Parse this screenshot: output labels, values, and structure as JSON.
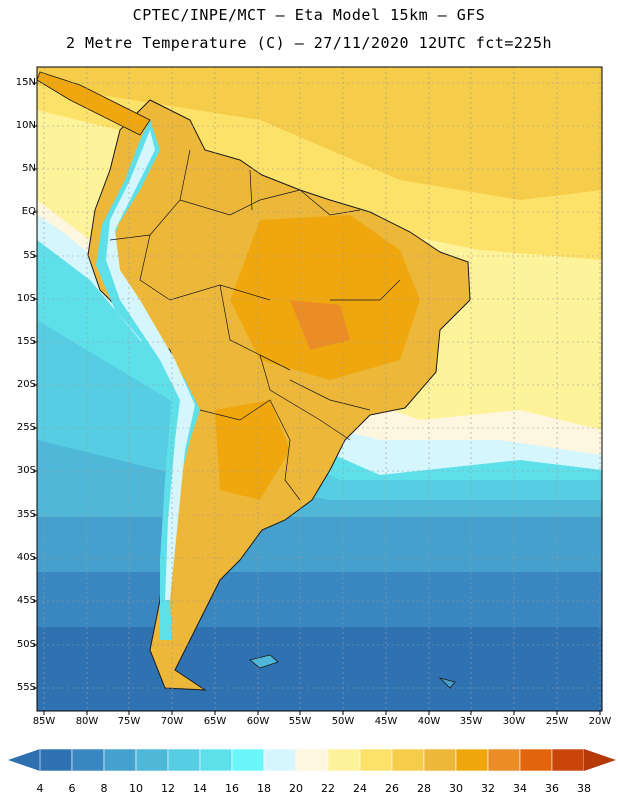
{
  "title_line1": "CPTEC/INPE/MCT –  Eta Model 15km – GFS",
  "title_line2": "2 Metre Temperature (C) – 27/11/2020 12UTC fct=225h",
  "lat_labels": [
    "15N",
    "10N",
    "5N",
    "EQ",
    "5S",
    "10S",
    "15S",
    "20S",
    "25S",
    "30S",
    "35S",
    "40S",
    "45S",
    "50S",
    "55S"
  ],
  "lon_labels": [
    "85W",
    "80W",
    "75W",
    "70W",
    "65W",
    "60W",
    "55W",
    "50W",
    "45W",
    "40W",
    "35W",
    "30W",
    "25W",
    "20W"
  ],
  "colorbar": {
    "labels": [
      "4",
      "6",
      "8",
      "10",
      "12",
      "14",
      "16",
      "18",
      "20",
      "22",
      "24",
      "26",
      "28",
      "30",
      "32",
      "34",
      "36",
      "38"
    ],
    "low_color": "#2e6fb0",
    "high_color": "#b6390a",
    "colors": [
      "#2f72b2",
      "#3a86c0",
      "#45a0cd",
      "#4fb8d8",
      "#56cde2",
      "#5ee0ea",
      "#6af6fb",
      "#d4f6fc",
      "#fef6df",
      "#fef39b",
      "#fde26a",
      "#f6cd4a",
      "#edb73a",
      "#f0a70e",
      "#eb8c24",
      "#e2650d",
      "#c94509"
    ]
  },
  "map": {
    "ocean_north_color": "#fde26a",
    "ocean_cold_color": "#3a86c0",
    "land_color": "#edb73a",
    "coast_color": "#1a1a1a",
    "grid_color": "#9a9a9a"
  }
}
